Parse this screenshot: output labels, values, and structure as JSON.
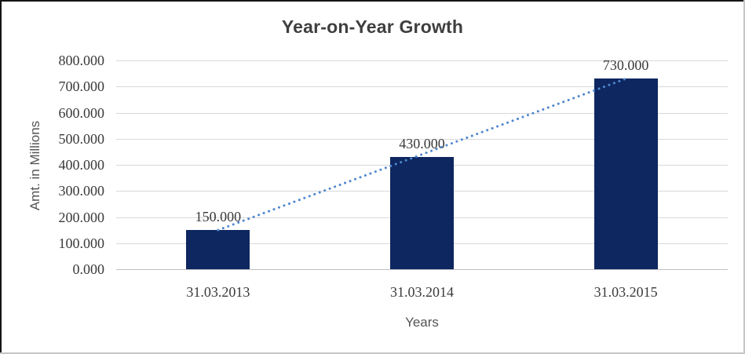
{
  "chart_data": {
    "type": "bar",
    "title": "Year-on-Year Growth",
    "categories": [
      "31.03.2013",
      "31.03.2014",
      "31.03.2015"
    ],
    "values": [
      150,
      430,
      730
    ],
    "data_labels": [
      "150.000",
      "430.000",
      "730.000"
    ],
    "xlabel": "Years",
    "ylabel": "Amt. in Millions",
    "ylim": [
      0,
      800
    ],
    "ytick_step": 100,
    "ytick_labels": [
      "0.000",
      "100.000",
      "200.000",
      "300.000",
      "400.000",
      "500.000",
      "600.000",
      "700.000",
      "800.000"
    ],
    "grid": "horizontal",
    "legend": "none",
    "trendline": {
      "style": "dotted",
      "from_index": 0,
      "to_index": 2,
      "attaches_to": "bar-tops"
    },
    "colors": {
      "bar": "#0e2760",
      "trendline": "#4f87ce",
      "gridline": "#d9d9d9",
      "axis_line": "#c0c0c0",
      "title_text": "#3f3f3f",
      "tick_text": "#3a3a3a",
      "axis_title_text": "#555555"
    }
  }
}
